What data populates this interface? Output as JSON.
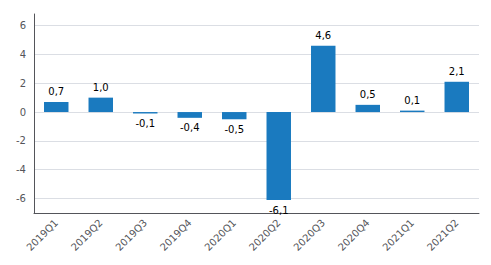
{
  "chart_data": {
    "type": "bar",
    "categories": [
      "2019Q1",
      "2019Q2",
      "2019Q3",
      "2019Q4",
      "2020Q1",
      "2020Q2",
      "2020Q3",
      "2020Q4",
      "2021Q1",
      "2021Q2"
    ],
    "values": [
      0.7,
      1.0,
      -0.1,
      -0.4,
      -0.5,
      -6.1,
      4.6,
      0.5,
      0.1,
      2.1
    ],
    "value_labels": [
      "0,7",
      "1,0",
      "-0,1",
      "-0,4",
      "-0,5",
      "-6,1",
      "4,6",
      "0,5",
      "0,1",
      "2,1"
    ],
    "data_labels": true,
    "color": "#1a7abf",
    "ylim": [
      -7,
      6.8
    ],
    "yticks": [
      -6,
      -4,
      -2,
      0,
      2,
      4,
      6
    ],
    "grid": true
  }
}
